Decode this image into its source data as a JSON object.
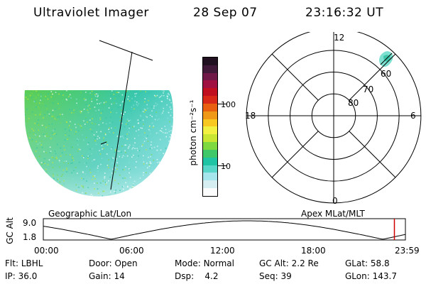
{
  "header": {
    "title": "Ultraviolet Imager",
    "date": "28 Sep 07",
    "time": "23:16:32 UT"
  },
  "colorbar": {
    "unit_label": "photon cm⁻²s⁻¹",
    "ticks": [
      {
        "label": "100",
        "value": 100
      },
      {
        "label": "10",
        "value": 10
      }
    ],
    "colors": [
      "#fdfdfd",
      "#d6eef2",
      "#a4e6ec",
      "#58d6c8",
      "#1fc4a4",
      "#3ec86a",
      "#7ed840",
      "#c8e632",
      "#f2f040",
      "#f8c820",
      "#f09818",
      "#e86010",
      "#d82818",
      "#c01020",
      "#a01040",
      "#701848",
      "#401838",
      "#201020"
    ]
  },
  "geo_panel": {
    "label": "Geographic Lat/Lon"
  },
  "polar_plot": {
    "label": "Apex MLat/MLT",
    "mlt_labels": {
      "top": "12",
      "left": "18",
      "right": "6",
      "bottom": "0"
    },
    "lat_labels": [
      "80",
      "70",
      "60"
    ],
    "lat_values": [
      80,
      70,
      60
    ]
  },
  "timeline": {
    "axis_label": "GC Alt",
    "y_ticks": [
      "9.0",
      "1.8"
    ],
    "x_ticks": [
      "00:00",
      "06:00",
      "12:00",
      "18:00",
      "23:59"
    ],
    "current_marker_hours": 23.27,
    "marker_color": "#d00000"
  },
  "info": {
    "rows": [
      [
        {
          "key": "Flt:",
          "val": "LBHL"
        },
        {
          "key": "Door:",
          "val": "Open"
        },
        {
          "key": "Mode:",
          "val": "Normal"
        },
        {
          "key": "GC Alt:",
          "val": "2.2 Re"
        },
        {
          "key": "GLat:",
          "val": "58.8"
        }
      ],
      [
        {
          "key": "IP:",
          "val": "36.0"
        },
        {
          "key": "Gain:",
          "val": "14"
        },
        {
          "key": "Dsp:",
          "val": "4.2"
        },
        {
          "key": "Seq:",
          "val": "39"
        },
        {
          "key": "GLon:",
          "val": "143.7"
        }
      ]
    ]
  }
}
